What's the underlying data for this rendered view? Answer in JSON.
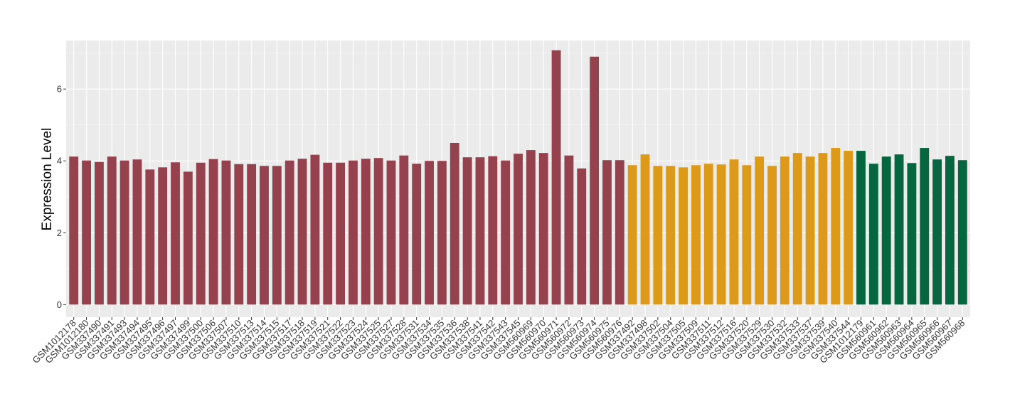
{
  "chart_data": {
    "type": "bar",
    "title": "",
    "xlabel": "",
    "ylabel": "Expression Level",
    "ylim": [
      -0.35,
      7.35
    ],
    "yticks": [
      0,
      2,
      4,
      6
    ],
    "grid": true,
    "legend": "none",
    "colors": {
      "panel": "#EBEBEB",
      "grid_major": "#FFFFFF",
      "group1": "#96424E",
      "group2": "#DC9A18",
      "group3": "#056640"
    },
    "categories": [
      "GSM1012178",
      "GSM1012180",
      "GSM337490",
      "GSM337491",
      "GSM337493",
      "GSM337494",
      "GSM337495",
      "GSM337496",
      "GSM337497",
      "GSM337499",
      "GSM337500",
      "GSM337506",
      "GSM337507",
      "GSM337510",
      "GSM337513",
      "GSM337514",
      "GSM337515",
      "GSM337517",
      "GSM337518",
      "GSM337519",
      "GSM337521",
      "GSM337522",
      "GSM337523",
      "GSM337524",
      "GSM337525",
      "GSM337527",
      "GSM337528",
      "GSM337531",
      "GSM337534",
      "GSM337535",
      "GSM337536",
      "GSM337538",
      "GSM337541",
      "GSM337542",
      "GSM337543",
      "GSM337545",
      "GSM560969",
      "GSM560970",
      "GSM560971",
      "GSM560972",
      "GSM560973",
      "GSM560974",
      "GSM560975",
      "GSM560976",
      "GSM337492",
      "GSM337498",
      "GSM337502",
      "GSM337504",
      "GSM337505",
      "GSM337509",
      "GSM337511",
      "GSM337512",
      "GSM337516",
      "GSM337520",
      "GSM337529",
      "GSM337530",
      "GSM337532",
      "GSM337533",
      "GSM337537",
      "GSM337539",
      "GSM337540",
      "GSM337544",
      "GSM1012179",
      "GSM560961",
      "GSM560962",
      "GSM560963",
      "GSM560964",
      "GSM560965",
      "GSM560966",
      "GSM560967",
      "GSM560968"
    ],
    "values": [
      4.12,
      4.01,
      3.97,
      4.12,
      4.01,
      4.04,
      3.76,
      3.82,
      3.96,
      3.7,
      3.95,
      4.05,
      4.01,
      3.91,
      3.91,
      3.86,
      3.86,
      4.01,
      4.06,
      4.17,
      3.95,
      3.95,
      4.01,
      4.06,
      4.08,
      4.01,
      4.15,
      3.92,
      4.0,
      4.0,
      4.5,
      4.1,
      4.1,
      4.13,
      4.01,
      4.2,
      4.3,
      4.22,
      7.08,
      4.15,
      3.79,
      6.9,
      4.02,
      4.02,
      3.88,
      4.18,
      3.86,
      3.86,
      3.82,
      3.88,
      3.92,
      3.9,
      4.04,
      3.88,
      4.12,
      3.86,
      4.12,
      4.22,
      4.12,
      4.22,
      4.36,
      4.28,
      4.28,
      3.92,
      4.12,
      4.18,
      3.94,
      4.36,
      4.04,
      4.14,
      4.02
    ],
    "groups": [
      1,
      1,
      1,
      1,
      1,
      1,
      1,
      1,
      1,
      1,
      1,
      1,
      1,
      1,
      1,
      1,
      1,
      1,
      1,
      1,
      1,
      1,
      1,
      1,
      1,
      1,
      1,
      1,
      1,
      1,
      1,
      1,
      1,
      1,
      1,
      1,
      1,
      1,
      1,
      1,
      1,
      1,
      1,
      1,
      2,
      2,
      2,
      2,
      2,
      2,
      2,
      2,
      2,
      2,
      2,
      2,
      2,
      2,
      2,
      2,
      2,
      2,
      3,
      3,
      3,
      3,
      3,
      3,
      3,
      3,
      3
    ]
  }
}
